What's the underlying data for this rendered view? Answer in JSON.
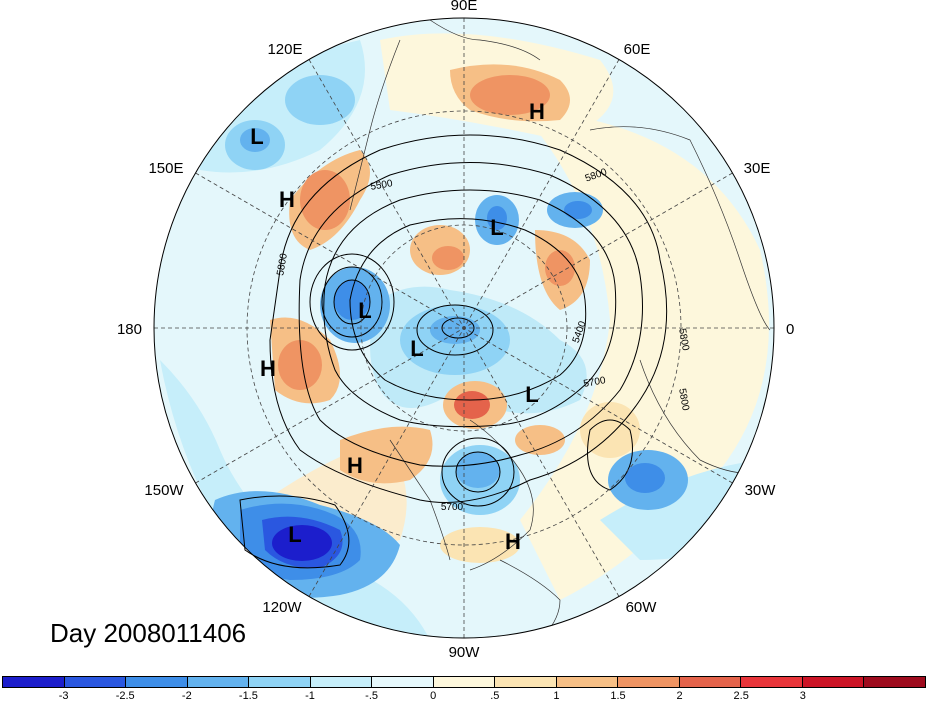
{
  "map": {
    "projection": "polar stereographic (north pole)",
    "longitude_labels": [
      {
        "text": "90E",
        "lon": 90
      },
      {
        "text": "60E",
        "lon": 60
      },
      {
        "text": "30E",
        "lon": 30
      },
      {
        "text": "0",
        "lon": 0
      },
      {
        "text": "30W",
        "lon": -30
      },
      {
        "text": "60W",
        "lon": -60
      },
      {
        "text": "90W",
        "lon": -90
      },
      {
        "text": "120W",
        "lon": -120
      },
      {
        "text": "150W",
        "lon": -150
      },
      {
        "text": "180",
        "lon": 180
      },
      {
        "text": "150E",
        "lon": 150
      },
      {
        "text": "120E",
        "lon": 120
      }
    ],
    "pressure_centers": [
      {
        "text": "L",
        "kind": "low"
      },
      {
        "text": "H",
        "kind": "high"
      },
      {
        "text": "H",
        "kind": "high"
      },
      {
        "text": "L",
        "kind": "low"
      },
      {
        "text": "L",
        "kind": "low"
      },
      {
        "text": "L",
        "kind": "low"
      },
      {
        "text": "H",
        "kind": "high"
      },
      {
        "text": "L",
        "kind": "low"
      },
      {
        "text": "H",
        "kind": "high"
      },
      {
        "text": "L",
        "kind": "low"
      },
      {
        "text": "H",
        "kind": "high"
      }
    ],
    "contour_labels": [
      "5800",
      "5500",
      "5800",
      "5400",
      "5700",
      "5800",
      "5800",
      "5700"
    ]
  },
  "day_label": "Day 2008011406",
  "colorbar": {
    "colors": [
      "#1c1ecc",
      "#2a57e0",
      "#3e8ee8",
      "#63b2ee",
      "#8fd3f5",
      "#c6eefa",
      "#e6f8fc",
      "#fdf7dc",
      "#fbe4b3",
      "#f6bf86",
      "#ef9463",
      "#e4634b",
      "#e8353a",
      "#cc1426",
      "#9e0b1e"
    ],
    "tick_labels": [
      "-3",
      "-2.5",
      "-2",
      "-1.5",
      "-1",
      "-.5",
      "0",
      ".5",
      "1",
      "1.5",
      "2",
      "2.5",
      "3"
    ]
  }
}
